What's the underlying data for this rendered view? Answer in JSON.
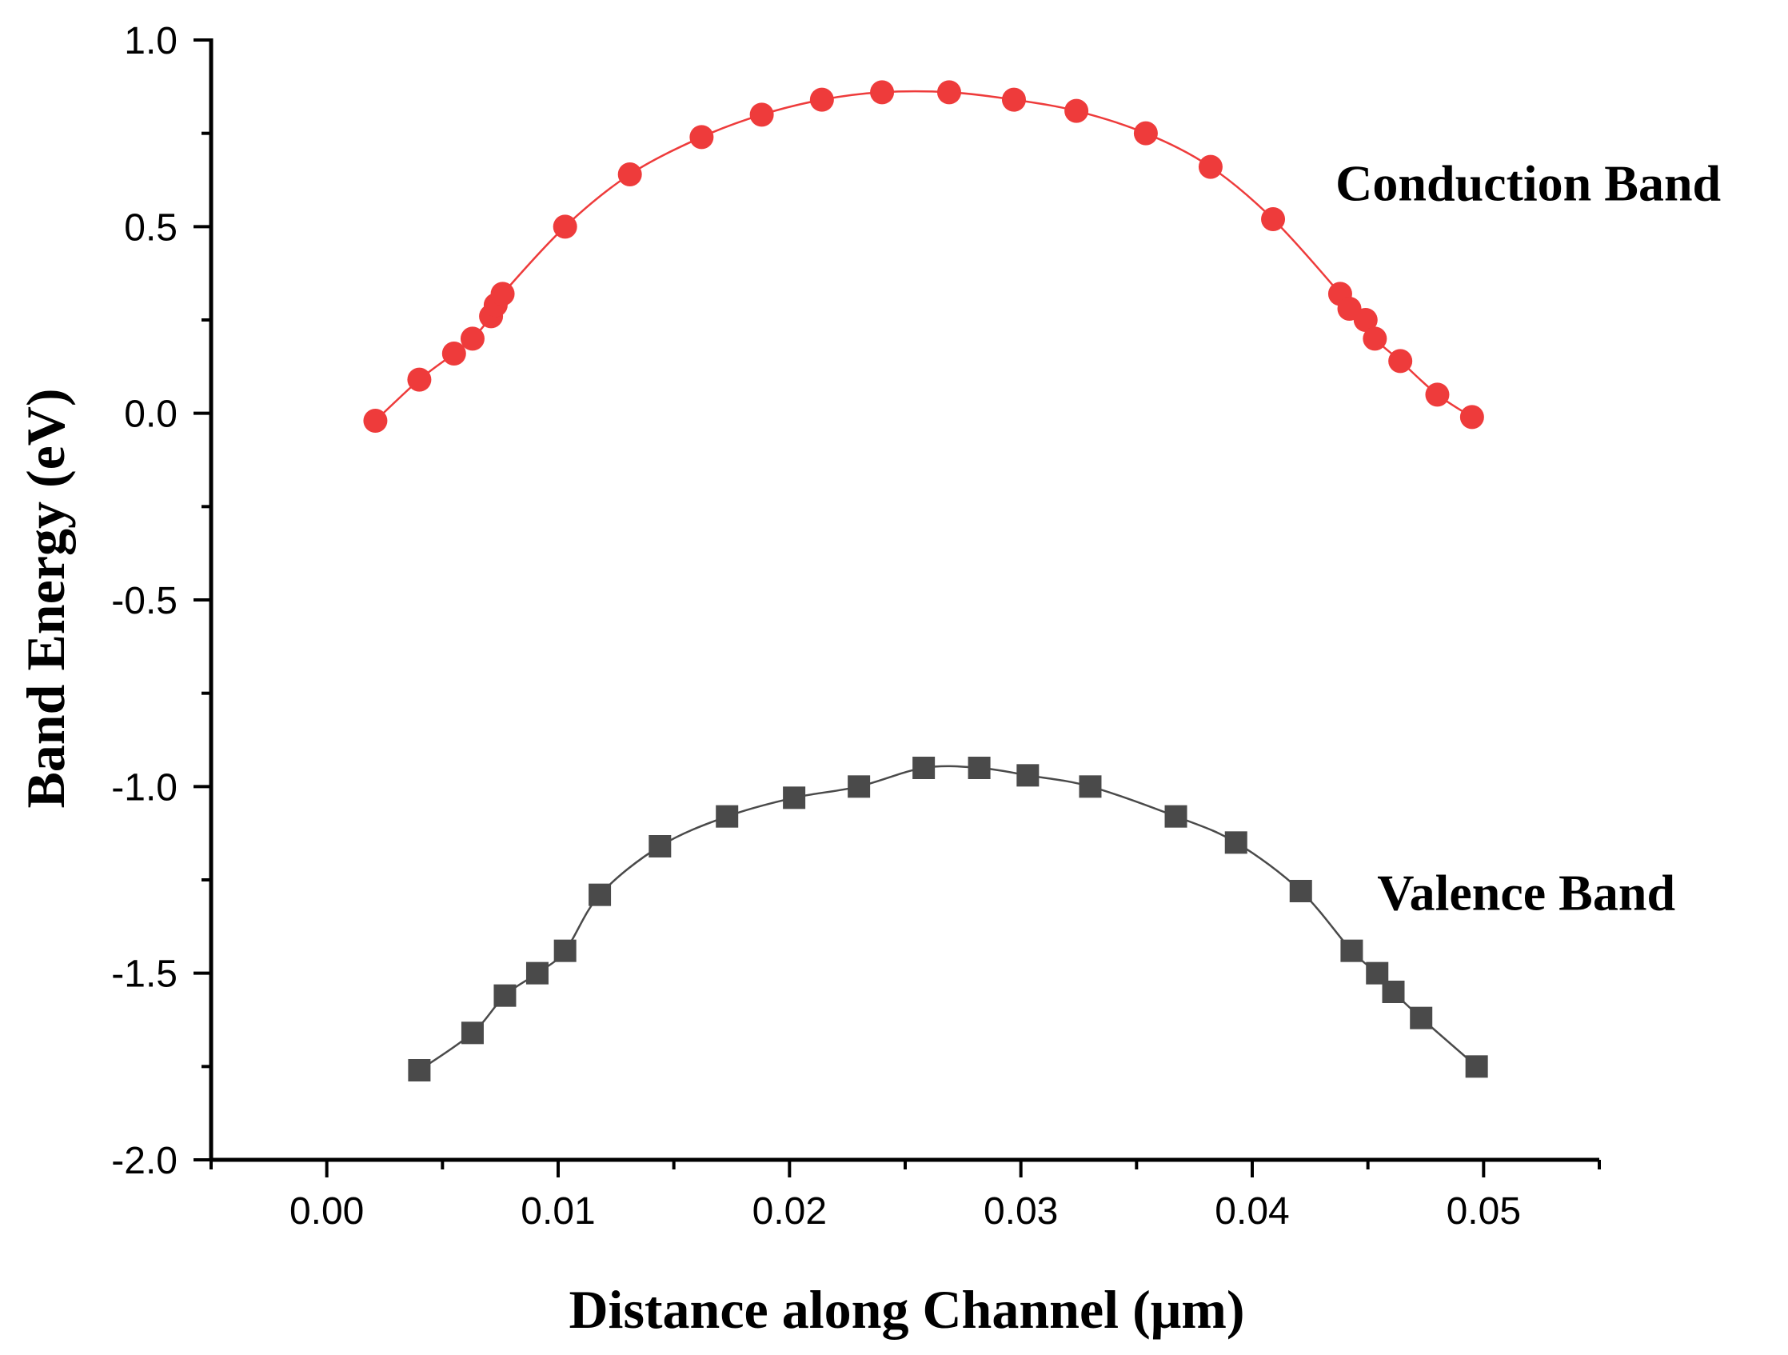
{
  "chart_data": {
    "type": "line",
    "title": "",
    "xlabel": "Distance along Channel (μm)",
    "ylabel": "Band Energy (eV)",
    "xlim": [
      -0.005,
      0.055
    ],
    "ylim": [
      -2.0,
      1.0
    ],
    "x_ticks": [
      0.0,
      0.01,
      0.02,
      0.03,
      0.04,
      0.05
    ],
    "x_tick_labels": [
      "0.00",
      "0.01",
      "0.02",
      "0.03",
      "0.04",
      "0.05"
    ],
    "y_ticks": [
      1.0,
      0.5,
      0.0,
      -0.5,
      -1.0,
      -1.5,
      -2.0
    ],
    "y_tick_labels": [
      "1.0",
      "0.5",
      "0.0",
      "-0.5",
      "-1.0",
      "-1.5",
      "-2.0"
    ],
    "grid": false,
    "series": [
      {
        "name": "Conduction Band",
        "color": "#ee3b3b",
        "marker": "circle",
        "x": [
          0.0021,
          0.004,
          0.0055,
          0.0063,
          0.0071,
          0.0073,
          0.0076,
          0.0103,
          0.0131,
          0.0162,
          0.0188,
          0.0214,
          0.024,
          0.0269,
          0.0297,
          0.0324,
          0.0354,
          0.0382,
          0.0409,
          0.0438,
          0.0442,
          0.0449,
          0.0453,
          0.0464,
          0.048,
          0.0495
        ],
        "y": [
          -0.02,
          0.09,
          0.16,
          0.2,
          0.26,
          0.29,
          0.32,
          0.5,
          0.64,
          0.74,
          0.8,
          0.84,
          0.86,
          0.86,
          0.84,
          0.81,
          0.75,
          0.66,
          0.52,
          0.32,
          0.28,
          0.25,
          0.2,
          0.14,
          0.05,
          -0.01
        ]
      },
      {
        "name": "Valence Band",
        "color": "#4a4a4a",
        "marker": "square",
        "x": [
          0.004,
          0.0063,
          0.0077,
          0.0091,
          0.0103,
          0.0118,
          0.0144,
          0.0173,
          0.0202,
          0.023,
          0.0258,
          0.0282,
          0.0303,
          0.033,
          0.0367,
          0.0393,
          0.0421,
          0.0443,
          0.0454,
          0.0461,
          0.0473,
          0.0497
        ],
        "y": [
          -1.76,
          -1.66,
          -1.56,
          -1.5,
          -1.44,
          -1.29,
          -1.16,
          -1.08,
          -1.03,
          -1.0,
          -0.95,
          -0.95,
          -0.97,
          -1.0,
          -1.08,
          -1.15,
          -1.28,
          -1.44,
          -1.5,
          -1.55,
          -1.62,
          -1.75
        ]
      }
    ],
    "annotations": [
      {
        "text": "Conduction Band",
        "x": 0.0436,
        "y": 0.57
      },
      {
        "text": "Valence Band",
        "x": 0.0454,
        "y": -1.33
      }
    ]
  }
}
